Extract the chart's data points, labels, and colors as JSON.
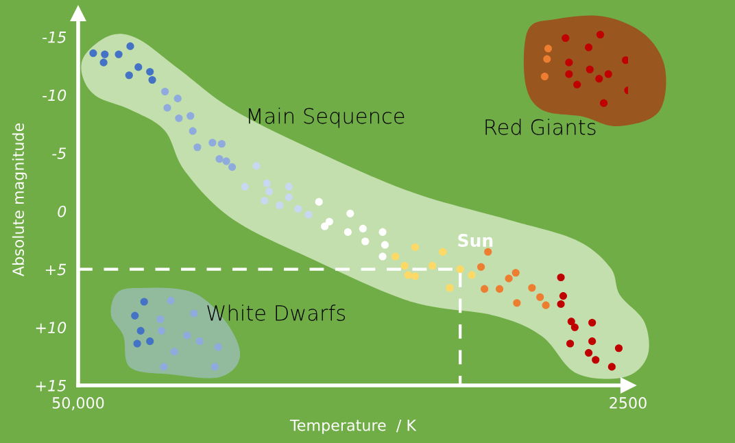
{
  "chart_data": {
    "type": "scatter",
    "xlabel": "Temperature  / K",
    "ylabel": "Absolute magnitude",
    "xlim": [
      50000,
      2500
    ],
    "xticks": [
      {
        "value": 50000,
        "label": "50,000"
      },
      2500
    ],
    "ylim": [
      15,
      -17
    ],
    "yticks": [
      -15,
      -10,
      -5,
      0,
      {
        "value": 5,
        "label": "+5"
      },
      {
        "value": 10,
        "label": "+10"
      },
      {
        "value": 15,
        "label": "+15"
      }
    ],
    "grid": false,
    "legend": false,
    "marker": "circle",
    "annotations": [
      {
        "text": "Sun",
        "x": 17000,
        "y": 5
      },
      "Main Sequence",
      "Red Giants",
      "White Dwarfs"
    ],
    "series": [
      {
        "type": "line",
        "color": "#ffffff",
        "line_style": "dashed",
        "marker": "none",
        "x": [
          50000,
          17000,
          17000
        ],
        "values": [
          5,
          5,
          15
        ]
      },
      {
        "color": "#4472c4",
        "x": [
          48700,
          47700,
          47800,
          46500,
          45500,
          44800,
          45600,
          43800,
          43600,
          44300,
          45100,
          44600,
          44900,
          43800
        ],
        "values": [
          -13.6,
          -13.5,
          -12.8,
          -13.5,
          -14.2,
          -12.4,
          -11.7,
          -12.0,
          -11.3,
          7.8,
          9.0,
          10.3,
          11.4,
          11.2
        ]
      },
      {
        "color": "#8faadc",
        "x": [
          42500,
          41400,
          42300,
          41300,
          40300,
          40100,
          39700,
          38400,
          37600,
          37800,
          37200,
          36700,
          42000,
          42900,
          40000,
          42800,
          40600,
          39500,
          37900,
          41700,
          42600,
          38200
        ],
        "values": [
          -10.3,
          -9.7,
          -8.9,
          -8.0,
          -8.2,
          -6.9,
          -5.5,
          -5.9,
          -5.8,
          -4.5,
          -4.3,
          -3.8,
          7.7,
          9.3,
          8.8,
          10.3,
          10.7,
          11.2,
          11.7,
          12.1,
          13.4,
          13.4
        ]
      },
      {
        "color": "#c9d8f0",
        "x": [
          34600,
          35600,
          33700,
          33500,
          33900,
          31800,
          31800,
          32600,
          31000,
          30100
        ],
        "values": [
          -3.9,
          -2.1,
          -2.4,
          -1.7,
          -0.9,
          -2.1,
          -1.2,
          -0.5,
          -0.2,
          0.3
        ]
      },
      {
        "color": "#ffffff",
        "x": [
          29200,
          26500,
          28300,
          28700,
          26700,
          25400,
          25200,
          23700,
          23500,
          23700
        ],
        "values": [
          -0.8,
          0.2,
          0.9,
          1.3,
          1.8,
          1.5,
          2.6,
          1.8,
          2.9,
          3.9
        ]
      },
      {
        "color": "#ffd966",
        "x": [
          22600,
          20900,
          18500,
          21800,
          21500,
          20900,
          19400,
          17000,
          16000,
          17900
        ],
        "values": [
          3.9,
          3.1,
          3.5,
          4.7,
          5.5,
          5.6,
          4.7,
          5.0,
          5.5,
          6.6
        ]
      },
      {
        "color": "#ed7d31",
        "x": [
          14600,
          15200,
          14900,
          13600,
          12800,
          12200,
          12100,
          10800,
          10100,
          9600,
          9400,
          9500,
          9700
        ],
        "values": [
          3.5,
          4.8,
          6.7,
          6.7,
          5.8,
          5.3,
          7.9,
          6.6,
          7.4,
          8.1,
          -14.0,
          -13.1,
          -11.6
        ]
      },
      {
        "color": "#c00000",
        "x": [
          8300,
          8100,
          8300,
          7400,
          7100,
          5600,
          7500,
          5600,
          5900,
          5300,
          3300,
          3900,
          7900,
          4900,
          5900,
          7600,
          7600,
          5800,
          6900,
          5000,
          4200,
          2700,
          2500,
          4600
        ],
        "values": [
          5.7,
          7.3,
          8.0,
          9.5,
          10.0,
          9.6,
          11.4,
          11.2,
          12.2,
          12.8,
          11.8,
          13.4,
          -14.9,
          -15.2,
          -14.1,
          -12.8,
          -11.8,
          -12.2,
          -10.9,
          -11.4,
          -11.8,
          -13.0,
          -10.4,
          -9.3
        ]
      }
    ]
  }
}
